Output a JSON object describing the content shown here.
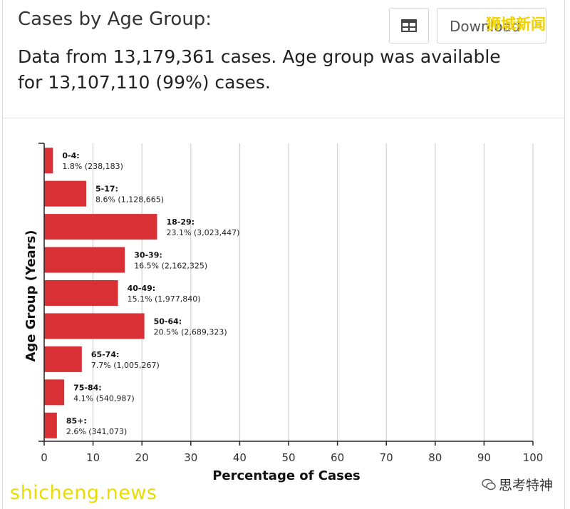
{
  "header": {
    "title": "Cases by Age Group:",
    "subtitle": "Data from 13,179,361 cases. Age group was available for 13,107,110 (99%) cases.",
    "download_label": "Download",
    "table_icon": "table-icon"
  },
  "watermarks": {
    "top_right": "狮城新闻",
    "bottom_left": "shicheng.news",
    "bottom_right": "思考特神"
  },
  "colors": {
    "bar": "#d93035",
    "grid": "#c9c9c9",
    "axis": "#222222"
  },
  "chart_data": {
    "type": "bar",
    "orientation": "horizontal",
    "xlabel": "Percentage of Cases",
    "ylabel": "Age Group (Years)",
    "xlim": [
      0,
      100
    ],
    "xticks": [
      0,
      10,
      20,
      30,
      40,
      50,
      60,
      70,
      80,
      90,
      100
    ],
    "grid": true,
    "categories": [
      "0-4:",
      "5-17:",
      "18-29:",
      "30-39:",
      "40-49:",
      "50-64:",
      "65-74:",
      "75-84:",
      "85+:"
    ],
    "values": [
      1.8,
      8.6,
      23.1,
      16.5,
      15.1,
      20.5,
      7.7,
      4.1,
      2.6
    ],
    "data_labels": [
      "1.8% (238,183)",
      "8.6% (1,128,665)",
      "23.1% (3,023,447)",
      "16.5% (2,162,325)",
      "15.1% (1,977,840)",
      "20.5% (2,689,323)",
      "7.7% (1,005,267)",
      "4.1% (540,987)",
      "2.6% (341,073)"
    ]
  }
}
